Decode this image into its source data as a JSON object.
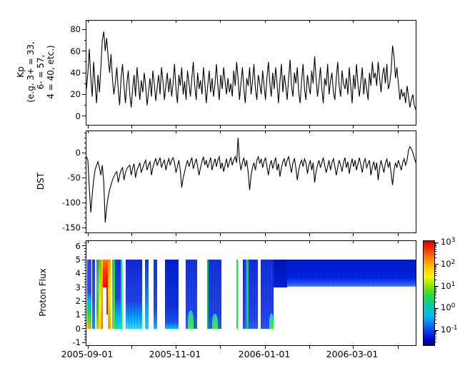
{
  "figure": {
    "background": "#ffffff",
    "line_color": "#000000"
  },
  "x_axis": {
    "tick_labels": [
      "2005-09-01",
      "2005-11-01",
      "2006-01-01",
      "2006-03-01"
    ]
  },
  "chart_data": [
    {
      "type": "line",
      "name": "kp-index",
      "ylabel": "Kp\n(e.g. 3+ = 33,\n6- = 57,\n4 = 40, etc.)",
      "ytick_labels": [
        "80",
        "60",
        "40",
        "20",
        "0"
      ],
      "ylim": [
        -8,
        88
      ],
      "y_minor_step": 10,
      "x_range": [
        "2005-08-30",
        "2006-04-13"
      ],
      "line_color": "#000000",
      "values": [
        25,
        40,
        62,
        35,
        18,
        50,
        30,
        12,
        38,
        22,
        45,
        70,
        78,
        60,
        72,
        55,
        40,
        57,
        35,
        20,
        30,
        45,
        25,
        10,
        35,
        48,
        28,
        12,
        30,
        42,
        20,
        8,
        25,
        38,
        18,
        45,
        30,
        15,
        33,
        22,
        40,
        28,
        10,
        22,
        35,
        18,
        42,
        30,
        14,
        27,
        38,
        20,
        45,
        32,
        15,
        28,
        40,
        22,
        35,
        18,
        30,
        48,
        25,
        12,
        38,
        28,
        45,
        20,
        32,
        15,
        42,
        30,
        18,
        35,
        50,
        28,
        15,
        40,
        25,
        33,
        20,
        45,
        30,
        12,
        28,
        42,
        22,
        35,
        18,
        30,
        48,
        28,
        15,
        38,
        25,
        45,
        32,
        20,
        35,
        22,
        30,
        18,
        42,
        28,
        50,
        35,
        15,
        30,
        45,
        25,
        12,
        35,
        28,
        45,
        20,
        32,
        48,
        25,
        15,
        38,
        30,
        20,
        42,
        28,
        15,
        35,
        50,
        30,
        18,
        40,
        25,
        45,
        30,
        12,
        32,
        48,
        22,
        38,
        28,
        15,
        35,
        52,
        28,
        18,
        40,
        30,
        45,
        22,
        12,
        33,
        48,
        25,
        15,
        38,
        28,
        20,
        42,
        30,
        55,
        35,
        18,
        30,
        45,
        25,
        12,
        35,
        28,
        48,
        20,
        32,
        40,
        22,
        15,
        35,
        50,
        28,
        18,
        42,
        30,
        25,
        35,
        20,
        45,
        28,
        12,
        38,
        25,
        48,
        30,
        18,
        32,
        45,
        20,
        35,
        25,
        15,
        40,
        28,
        50,
        35,
        40,
        28,
        50,
        35,
        22,
        38,
        45,
        30,
        48,
        25,
        30,
        42,
        65,
        55,
        35,
        45,
        30,
        15,
        25,
        18,
        22,
        12,
        28,
        18,
        8,
        15,
        20,
        10,
        6
      ]
    },
    {
      "type": "line",
      "name": "dst-index",
      "ylabel": "DST",
      "ytick_labels": [
        "0",
        "-50",
        "-100",
        "-150"
      ],
      "ylim": [
        -160,
        43
      ],
      "y_minor_step": 10,
      "line_color": "#000000",
      "values": [
        -8,
        -15,
        -70,
        -120,
        -85,
        -55,
        -35,
        -25,
        -18,
        -30,
        -45,
        -25,
        -60,
        -140,
        -110,
        -90,
        -75,
        -65,
        -55,
        -48,
        -42,
        -38,
        -60,
        -45,
        -35,
        -30,
        -55,
        -40,
        -32,
        -28,
        -25,
        -45,
        -30,
        -22,
        -50,
        -35,
        -28,
        -20,
        -40,
        -30,
        -22,
        -15,
        -35,
        -25,
        -18,
        -45,
        -30,
        -20,
        -12,
        -25,
        -18,
        -10,
        -30,
        -20,
        -15,
        -35,
        -22,
        -12,
        -25,
        -15,
        -10,
        -20,
        -40,
        -28,
        -15,
        -35,
        -70,
        -50,
        -38,
        -25,
        -15,
        -28,
        -18,
        -10,
        -32,
        -22,
        -12,
        -28,
        -45,
        -30,
        -18,
        -8,
        -25,
        -15,
        -30,
        -20,
        -10,
        -35,
        -22,
        -12,
        -28,
        -15,
        -8,
        -32,
        -20,
        -38,
        -25,
        -12,
        -30,
        -18,
        -10,
        -25,
        -15,
        -8,
        -20,
        30,
        -15,
        -35,
        -20,
        -10,
        -28,
        -15,
        -40,
        -75,
        -45,
        -30,
        -20,
        -35,
        -15,
        -8,
        -22,
        -12,
        -30,
        -18,
        -10,
        -28,
        -45,
        -25,
        -15,
        -32,
        -20,
        -10,
        -35,
        -22,
        -48,
        -30,
        -18,
        -12,
        -28,
        -15,
        -8,
        -25,
        -40,
        -20,
        -12,
        -30,
        -55,
        -35,
        -22,
        -15,
        -28,
        -12,
        -20,
        -42,
        -25,
        -15,
        -35,
        -20,
        -60,
        -38,
        -25,
        -15,
        -30,
        -20,
        -10,
        -25,
        -40,
        -28,
        -15,
        -35,
        -20,
        -12,
        -28,
        -45,
        -30,
        -15,
        -25,
        -38,
        -20,
        -10,
        -30,
        -18,
        -42,
        -25,
        -12,
        -28,
        -15,
        -35,
        -22,
        -10,
        -25,
        -40,
        -20,
        -12,
        -30,
        -22,
        -15,
        -45,
        -28,
        -18,
        -35,
        -20,
        -55,
        -30,
        -15,
        -28,
        -40,
        -22,
        -12,
        -30,
        -18,
        -42,
        -65,
        -35,
        -20,
        -30,
        -15,
        -25,
        -35,
        -20,
        -12,
        -25,
        -15,
        5,
        12,
        8,
        0,
        -10,
        -20
      ]
    },
    {
      "type": "heatmap",
      "name": "proton-flux",
      "ylabel": "Proton Flux",
      "ytick_labels": [
        "6",
        "5",
        "4",
        "3",
        "2",
        "1",
        "0",
        "-1"
      ],
      "ylim": [
        -1.2,
        6.35
      ],
      "y_minor_step": 0.2,
      "stripes": [
        [
          1,
          6.5,
          0,
          5,
          [
            [
              "#2b46ee",
              0
            ],
            [
              "#2b46ee",
              45
            ],
            [
              "#00b4ff",
              60
            ],
            [
              "#00cc66",
              72
            ],
            [
              "#55dd22",
              88
            ],
            [
              "#ffaa00",
              100
            ]
          ],
          0,
          0
        ],
        [
          8,
          11.5,
          0,
          5,
          [
            [
              "#2233dd",
              0
            ],
            [
              "#2a4cf0",
              60
            ],
            [
              "#0099ff",
              100
            ]
          ],
          0,
          0
        ],
        [
          13.5,
          17,
          0,
          5,
          [
            [
              "#3377ff",
              0
            ],
            [
              "#00ccee",
              40
            ],
            [
              "#00cc66",
              70
            ],
            [
              "#99ee00",
              100
            ]
          ],
          0,
          0
        ],
        [
          17,
          20.5,
          0,
          5,
          [
            [
              "#55cc00",
              0
            ],
            [
              "#b8ee00",
              40
            ],
            [
              "#ffee00",
              70
            ],
            [
              "#ffcc00",
              100
            ]
          ],
          0,
          0
        ],
        [
          20.5,
          22.5,
          0,
          5,
          [
            [
              "#ffd000",
              0
            ],
            [
              "#ffaa00",
              45
            ],
            [
              "#ff6600",
              100
            ]
          ],
          0,
          0
        ],
        [
          22.5,
          29.5,
          3,
          5,
          [
            [
              "#ff7700",
              0
            ],
            [
              "#ff2200",
              55
            ],
            [
              "#ee1100",
              100
            ]
          ],
          0,
          0
        ],
        [
          27.5,
          29.5,
          1,
          3,
          "#ee2200",
          0,
          0
        ],
        [
          29.5,
          34,
          0,
          5,
          [
            [
              "#ff9900",
              0
            ],
            [
              "#ffe000",
              35
            ],
            [
              "#f0ee00",
              55
            ],
            [
              "#bbdd00",
              75
            ],
            [
              "#ff9900",
              100
            ]
          ],
          0,
          0
        ],
        [
          36,
          39.5,
          0,
          5,
          [
            [
              "#22cc44",
              0
            ],
            [
              "#66dd22",
              100
            ]
          ],
          0,
          0
        ],
        [
          39.5,
          48,
          0,
          5,
          [
            [
              "#1133dd",
              0
            ],
            [
              "#2244ee",
              55
            ],
            [
              "#00aaff",
              80
            ],
            [
              "#00e0cc",
              100
            ]
          ],
          0,
          0
        ],
        [
          48,
          50,
          0,
          5,
          "#00ee44",
          0,
          0
        ],
        [
          55,
          78,
          0,
          5,
          [
            [
              "#1128dd",
              0
            ],
            [
              "#2043e8",
              60
            ],
            [
              "#00aaff",
              85
            ],
            [
              "#33ddff",
              100
            ]
          ],
          1,
          0
        ],
        [
          82,
          87,
          0,
          5,
          [
            [
              "#1133dd",
              0
            ],
            [
              "#0099ff",
              65
            ],
            [
              "#00ddff",
              100
            ]
          ],
          0,
          0
        ],
        [
          93.5,
          98.5,
          0,
          5,
          [
            [
              "#1133dd",
              0
            ],
            [
              "#2244ee",
              70
            ],
            [
              "#00bbff",
              100
            ]
          ],
          0,
          0
        ],
        [
          110,
          128.5,
          0,
          5,
          [
            [
              "#0022cc",
              0
            ],
            [
              "#1133dd",
              70
            ],
            [
              "#1c52e8",
              90
            ],
            [
              "#00c8ff",
              100
            ]
          ],
          1,
          0
        ],
        [
          138.5,
          155,
          0,
          5,
          [
            [
              "#1133dd",
              0
            ],
            [
              "#2345e8",
              75
            ],
            [
              "#2d62f2",
              100
            ]
          ],
          1,
          0
        ],
        [
          141.5,
          150,
          0,
          1.35,
          [
            [
              "#19c8c8",
              0
            ],
            [
              "#3fe93f",
              85
            ],
            [
              "#3fe93f",
              100
            ]
          ],
          0,
          1
        ],
        [
          168.5,
          170.5,
          0,
          5,
          "#00cc44",
          0,
          0
        ],
        [
          170.5,
          188.5,
          0,
          5,
          [
            [
              "#1133dd",
              0
            ],
            [
              "#2143e8",
              80
            ],
            [
              "#2d62f2",
              100
            ]
          ],
          1,
          0
        ],
        [
          176,
          183.5,
          0,
          1.05,
          [
            [
              "#19c8c8",
              0
            ],
            [
              "#3fe93f",
              85
            ],
            [
              "#3fe93f",
              100
            ]
          ],
          0,
          1
        ],
        [
          209.5,
          211.5,
          0,
          5,
          "#11ee33",
          0,
          0
        ],
        [
          218.5,
          240,
          0,
          5,
          [
            [
              "#1130dd",
              0
            ],
            [
              "#2244ee",
              85
            ],
            [
              "#2e65f0",
              100
            ]
          ],
          1,
          0
        ],
        [
          222.5,
          224.5,
          0,
          5,
          "#2f8fe8",
          0,
          0
        ],
        [
          225,
          227,
          0,
          5,
          "#11dd44",
          0,
          0
        ],
        [
          244,
          262,
          0,
          5,
          [
            [
              "#1130dd",
              0
            ],
            [
              "#2343e8",
              80
            ],
            [
              "#2857ee",
              100
            ]
          ],
          1,
          0
        ],
        [
          256,
          262,
          0,
          1.15,
          [
            [
              "#19c8c8",
              0
            ],
            [
              "#3fe93f",
              85
            ],
            [
              "#3fe93f",
              100
            ]
          ],
          0,
          1
        ],
        [
          262,
          461,
          3.05,
          5,
          [
            [
              "#0019c8",
              0
            ],
            [
              "#0125e0",
              68
            ],
            [
              "#2a62ff",
              92
            ],
            [
              "#49a0ff",
              100
            ]
          ],
          1,
          0
        ],
        [
          262,
          281,
          3.0,
          5,
          [
            [
              "#0014b6",
              0
            ],
            [
              "#0020d0",
              100
            ]
          ],
          1,
          0
        ]
      ],
      "colorbar": {
        "tick_base": "10",
        "tick_exponents": [
          "3",
          "2",
          "1",
          "0",
          "-1"
        ],
        "log_range": [
          -1.65,
          3.1
        ],
        "gradient": [
          [
            "#c80000",
            0
          ],
          [
            "#ff3300",
            8
          ],
          [
            "#ff8800",
            17
          ],
          [
            "#ffcc00",
            26
          ],
          [
            "#f8f500",
            34
          ],
          [
            "#88e800",
            43
          ],
          [
            "#22dd44",
            52
          ],
          [
            "#00ccaa",
            62
          ],
          [
            "#00bbee",
            72
          ],
          [
            "#0077ff",
            80
          ],
          [
            "#0033ee",
            88
          ],
          [
            "#0000cc",
            95
          ],
          [
            "#000088",
            100
          ]
        ]
      }
    }
  ]
}
